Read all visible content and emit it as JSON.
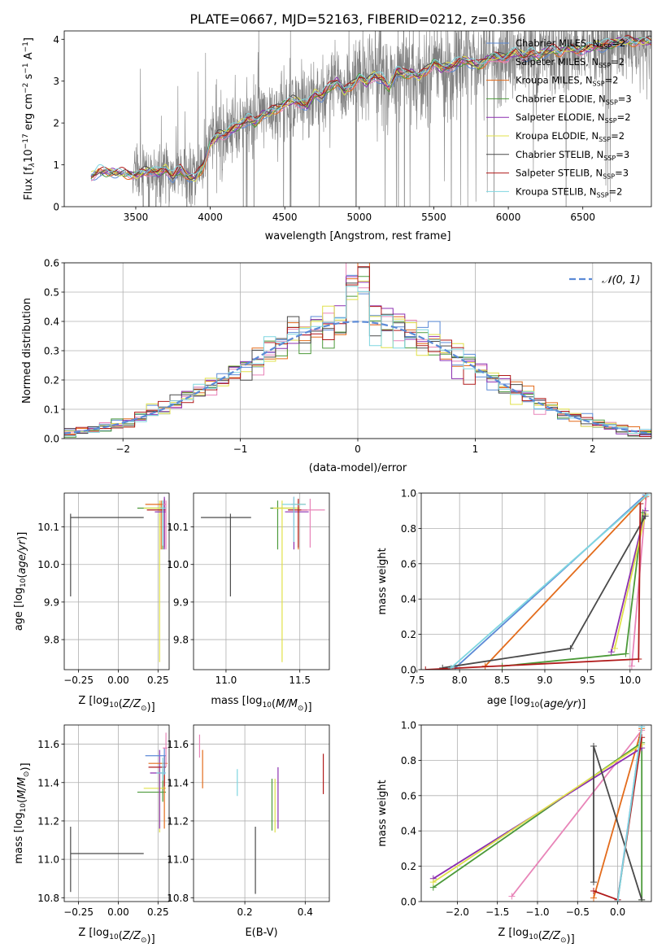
{
  "title": "PLATE=0667, MJD=52163, FIBERID=0212, z=0.356",
  "colors": {
    "chabrier_miles": "#5b8ad6",
    "salpeter_miles": "#e884b8",
    "kroupa_miles": "#e36c1c",
    "chabrier_elodie": "#4c9a3a",
    "salpeter_elodie": "#8c2fb0",
    "kroupa_elodie": "#e0e04a",
    "chabrier_stelib": "#4a4a4a",
    "salpeter_stelib": "#b01a1a",
    "kroupa_stelib": "#7fd6e0",
    "data": "#808080",
    "gaussian": "#5b8ad6"
  },
  "chart_data": [
    {
      "id": "spectrum",
      "type": "line",
      "title": "PLATE=0667, MJD=52163, FIBERID=0212, z=0.356",
      "xlabel": "wavelength [Angstrom, rest frame]",
      "ylabel": "Flux [f$_\\lambda$10$^{-17}$ erg cm$^{-2}$ s$^{-1}$ A$^{-1}$]",
      "ylabel_parts": [
        "Flux [f",
        "λ",
        "10",
        "−17",
        " erg cm",
        "−2",
        " s",
        "−1",
        " A",
        "−1",
        "]"
      ],
      "xlim": [
        3020,
        6960
      ],
      "ylim": [
        0,
        4.2
      ],
      "xticks": [
        "3500",
        "4000",
        "4500",
        "5000",
        "5500",
        "6000",
        "6500"
      ],
      "yticks": [
        "0",
        "1",
        "2",
        "3",
        "4"
      ],
      "legend_position": "upper-right",
      "legend": [
        {
          "name": "Chabrier MILES",
          "nssp": "2",
          "color_key": "chabrier_miles"
        },
        {
          "name": "Salpeter MILES",
          "nssp": "2",
          "color_key": "salpeter_miles"
        },
        {
          "name": "Kroupa MILES",
          "nssp": "2",
          "color_key": "kroupa_miles"
        },
        {
          "name": "Chabrier ELODIE",
          "nssp": "3",
          "color_key": "chabrier_elodie"
        },
        {
          "name": "Salpeter ELODIE",
          "nssp": "2",
          "color_key": "salpeter_elodie"
        },
        {
          "name": "Kroupa ELODIE",
          "nssp": "2",
          "color_key": "kroupa_elodie"
        },
        {
          "name": "Chabrier STELIB",
          "nssp": "3",
          "color_key": "chabrier_stelib"
        },
        {
          "name": "Salpeter STELIB",
          "nssp": "3",
          "color_key": "salpeter_stelib"
        },
        {
          "name": "Kroupa STELIB",
          "nssp": "2",
          "color_key": "kroupa_stelib"
        }
      ],
      "model_profile": {
        "x": [
          3200,
          3250,
          3300,
          3350,
          3400,
          3450,
          3500,
          3550,
          3600,
          3650,
          3700,
          3750,
          3800,
          3850,
          3900,
          3950,
          4000,
          4050,
          4100,
          4150,
          4200,
          4250,
          4300,
          4350,
          4400,
          4450,
          4500,
          4550,
          4600,
          4650,
          4700,
          4750,
          4800,
          4850,
          4900,
          4950,
          5000,
          5050,
          5100,
          5150,
          5200,
          5250,
          5300,
          5350,
          5400,
          5450,
          5500,
          5550,
          5600,
          5650,
          5700,
          5750,
          5800,
          5850,
          5900,
          5950,
          6000,
          6050,
          6100,
          6150,
          6200,
          6250,
          6300,
          6350,
          6400,
          6450,
          6500,
          6550,
          6600,
          6650,
          6700,
          6750
        ],
        "y": [
          0.72,
          0.85,
          0.83,
          0.82,
          0.8,
          0.78,
          0.74,
          0.82,
          0.88,
          0.8,
          0.9,
          0.72,
          0.9,
          0.72,
          0.68,
          0.95,
          1.5,
          1.7,
          1.75,
          1.85,
          1.95,
          2.1,
          2.0,
          2.2,
          2.25,
          2.35,
          2.45,
          2.55,
          2.5,
          2.4,
          2.7,
          2.65,
          2.85,
          3.0,
          2.75,
          2.9,
          3.1,
          2.95,
          3.15,
          3.05,
          2.85,
          3.25,
          3.15,
          3.2,
          3.1,
          3.25,
          3.45,
          3.3,
          3.35,
          3.4,
          3.5,
          3.45,
          3.35,
          3.5,
          3.6,
          3.55,
          3.6,
          3.7,
          3.6,
          3.65,
          3.6,
          3.7,
          3.75,
          3.7,
          3.8,
          3.75,
          3.75,
          3.8,
          3.85,
          3.85,
          3.9,
          3.95
        ]
      }
    },
    {
      "id": "residuals",
      "type": "step",
      "xlabel": "(data-model)/error",
      "ylabel": "Normed distribution",
      "xlim": [
        -2.5,
        2.5
      ],
      "ylim": [
        0,
        0.6
      ],
      "xticks": [
        "−2",
        "−1",
        "0",
        "1",
        "2"
      ],
      "yticks": [
        "0.0",
        "0.1",
        "0.2",
        "0.3",
        "0.4",
        "0.5",
        "0.6"
      ],
      "legend": [
        {
          "name": "𝒩(0, 1)",
          "style": "dashed",
          "color_key": "gaussian"
        }
      ],
      "legend_position": "upper-right",
      "bin_width": 0.1
    },
    {
      "id": "age_vs_Z",
      "type": "errorbar",
      "xlabel": "Z [log10(Z/Z⊙)]",
      "ylabel": "age  [log10(age/yr)]",
      "xlim": [
        -0.34,
        0.32
      ],
      "ylim": [
        9.72,
        10.19
      ],
      "xticks": [
        "−0.25",
        "0.00",
        "0.25"
      ],
      "yticks": [
        "9.8",
        "9.9",
        "10.0",
        "10.1"
      ],
      "points": [
        {
          "color_key": "chabrier_stelib",
          "x": -0.3,
          "xerr": [
            0,
            0.46
          ],
          "y": 10.125,
          "yerr": [
            0.21,
            0.01
          ]
        },
        {
          "color_key": "chabrier_elodie",
          "x": 0.28,
          "xerr": [
            0.16,
            0.02
          ],
          "y": 10.15,
          "yerr": [
            0.11,
            0.02
          ]
        },
        {
          "color_key": "kroupa_elodie",
          "x": 0.26,
          "xerr": [
            0.1,
            0.04
          ],
          "y": 10.15,
          "yerr": [
            0.41,
            0.02
          ]
        },
        {
          "color_key": "kroupa_miles",
          "x": 0.27,
          "xerr": [
            0.1,
            0.03
          ],
          "y": 10.16,
          "yerr": [
            0.12,
            0.01
          ]
        },
        {
          "color_key": "salpeter_stelib",
          "x": 0.29,
          "xerr": [
            0.11,
            0.01
          ],
          "y": 10.145,
          "yerr": [
            0.1,
            0.03
          ]
        },
        {
          "color_key": "salpeter_elodie",
          "x": 0.29,
          "xerr": [
            0.06,
            0.01
          ],
          "y": 10.14,
          "yerr": [
            0.1,
            0.04
          ]
        },
        {
          "color_key": "salpeter_miles",
          "x": 0.3,
          "xerr": [
            0.02,
            0.0
          ],
          "y": 10.16,
          "yerr": [
            0.12,
            0.01
          ]
        },
        {
          "color_key": "kroupa_stelib",
          "x": 0.28,
          "xerr": [
            0.02,
            0.02
          ],
          "y": 10.15,
          "yerr": [
            0.1,
            0.02
          ]
        }
      ]
    },
    {
      "id": "age_vs_mass",
      "type": "errorbar",
      "xlabel": "mass [log10(M/M⊙)]",
      "ylabel": "",
      "xlim": [
        10.78,
        11.7
      ],
      "ylim": [
        9.72,
        10.19
      ],
      "xticks": [
        "11.0",
        "11.5"
      ],
      "yticks": [
        "9.8",
        "9.9",
        "10.0",
        "10.1"
      ],
      "points": [
        {
          "color_key": "chabrier_stelib",
          "x": 11.03,
          "xerr": [
            0.2,
            0.14
          ],
          "y": 10.125,
          "yerr": [
            0.21,
            0.01
          ]
        },
        {
          "color_key": "chabrier_elodie",
          "x": 11.35,
          "xerr": [
            0.05,
            0.12
          ],
          "y": 10.15,
          "yerr": [
            0.11,
            0.02
          ]
        },
        {
          "color_key": "kroupa_elodie",
          "x": 11.38,
          "xerr": [
            0.06,
            0.12
          ],
          "y": 10.15,
          "yerr": [
            0.41,
            0.02
          ]
        },
        {
          "color_key": "salpeter_elodie",
          "x": 11.46,
          "xerr": [
            0.06,
            0.1
          ],
          "y": 10.14,
          "yerr": [
            0.1,
            0.04
          ]
        },
        {
          "color_key": "kroupa_miles",
          "x": 11.49,
          "xerr": [
            0.05,
            0.05
          ],
          "y": 10.16,
          "yerr": [
            0.12,
            0.01
          ]
        },
        {
          "color_key": "salpeter_stelib",
          "x": 11.49,
          "xerr": [
            0.07,
            0.06
          ],
          "y": 10.145,
          "yerr": [
            0.1,
            0.03
          ]
        },
        {
          "color_key": "salpeter_miles",
          "x": 11.57,
          "xerr": [
            0.06,
            0.1
          ],
          "y": 10.145,
          "yerr": [
            0.1,
            0.03
          ]
        },
        {
          "color_key": "kroupa_stelib",
          "x": 11.46,
          "xerr": [
            0.08,
            0.08
          ],
          "y": 10.16,
          "yerr": [
            0.1,
            0.02
          ]
        }
      ]
    },
    {
      "id": "massweight_vs_age",
      "type": "line",
      "xlabel": "age  [log10(age/yr)]",
      "ylabel": "mass weight",
      "xlim": [
        7.55,
        10.25
      ],
      "ylim": [
        0,
        1
      ],
      "xticks": [
        "7.5",
        "8.0",
        "8.5",
        "9.0",
        "9.5",
        "10.0"
      ],
      "yticks": [
        "0.0",
        "0.2",
        "0.4",
        "0.6",
        "0.8",
        "1.0"
      ],
      "series": [
        {
          "color_key": "chabrier_miles",
          "x": [
            7.95,
            10.18
          ],
          "y": [
            0.01,
            0.99
          ]
        },
        {
          "color_key": "salpeter_miles",
          "x": [
            10.02,
            10.19
          ],
          "y": [
            0.02,
            0.98
          ]
        },
        {
          "color_key": "kroupa_miles",
          "x": [
            8.3,
            10.18
          ],
          "y": [
            0.02,
            0.98
          ]
        },
        {
          "color_key": "chabrier_elodie",
          "x": [
            8.5,
            9.95,
            10.15
          ],
          "y": [
            0.02,
            0.09,
            0.89
          ]
        },
        {
          "color_key": "salpeter_elodie",
          "x": [
            9.78,
            10.18
          ],
          "y": [
            0.1,
            0.9
          ]
        },
        {
          "color_key": "kroupa_elodie",
          "x": [
            9.82,
            10.18
          ],
          "y": [
            0.12,
            0.88
          ]
        },
        {
          "color_key": "chabrier_stelib",
          "x": [
            7.8,
            9.3,
            10.18
          ],
          "y": [
            0.01,
            0.12,
            0.87
          ]
        },
        {
          "color_key": "salpeter_stelib",
          "x": [
            7.6,
            10.1,
            10.12
          ],
          "y": [
            0.0,
            0.06,
            0.94
          ]
        },
        {
          "color_key": "kroupa_stelib",
          "x": [
            7.9,
            10.2
          ],
          "y": [
            0.01,
            0.99
          ]
        }
      ]
    },
    {
      "id": "mass_vs_Z",
      "type": "errorbar",
      "xlabel": "Z [log10(Z/Z⊙)]",
      "ylabel": "mass [log10(M/M⊙)]",
      "xlim": [
        -0.34,
        0.32
      ],
      "ylim": [
        10.78,
        11.7
      ],
      "xticks": [
        "−0.25",
        "0.00",
        "0.25"
      ],
      "yticks": [
        "10.8",
        "11.0",
        "11.2",
        "11.4",
        "11.6"
      ],
      "points": [
        {
          "color_key": "chabrier_stelib",
          "x": -0.3,
          "xerr": [
            0,
            0.46
          ],
          "y": 11.03,
          "yerr": [
            0.2,
            0.14
          ]
        },
        {
          "color_key": "chabrier_elodie",
          "x": 0.28,
          "xerr": [
            0.16,
            0.02
          ],
          "y": 11.35,
          "yerr": [
            0.05,
            0.12
          ]
        },
        {
          "color_key": "kroupa_elodie",
          "x": 0.26,
          "xerr": [
            0.1,
            0.04
          ],
          "y": 11.37,
          "yerr": [
            0.23,
            0.1
          ]
        },
        {
          "color_key": "salpeter_elodie",
          "x": 0.26,
          "xerr": [
            0.06,
            0.03
          ],
          "y": 11.45,
          "yerr": [
            0.29,
            0.12
          ]
        },
        {
          "color_key": "kroupa_miles",
          "x": 0.29,
          "xerr": [
            0.1,
            0.02
          ],
          "y": 11.5,
          "yerr": [
            0.34,
            0.04
          ]
        },
        {
          "color_key": "salpeter_stelib",
          "x": 0.29,
          "xerr": [
            0.1,
            0.01
          ],
          "y": 11.48,
          "yerr": [
            0.1,
            0.06
          ]
        },
        {
          "color_key": "chabrier_miles",
          "x": 0.29,
          "xerr": [
            0.12,
            0.01
          ],
          "y": 11.54,
          "yerr": [
            0.1,
            0.04
          ]
        },
        {
          "color_key": "salpeter_miles",
          "x": 0.3,
          "xerr": [
            0.02,
            0.01
          ],
          "y": 11.58,
          "yerr": [
            0.1,
            0.08
          ]
        },
        {
          "color_key": "kroupa_stelib",
          "x": 0.28,
          "xerr": [
            0.04,
            0.02
          ],
          "y": 11.45,
          "yerr": [
            0.04,
            0.08
          ]
        }
      ]
    },
    {
      "id": "mass_vs_ebv",
      "type": "errorbar",
      "xlabel": "E(B-V)",
      "ylabel": "",
      "xlim": [
        0.03,
        0.48
      ],
      "ylim": [
        10.78,
        11.7
      ],
      "xticks": [
        "0.2",
        "0.4"
      ],
      "yticks": [
        "10.8",
        "11.0",
        "11.2",
        "11.4",
        "11.6"
      ],
      "points": [
        {
          "color_key": "salpeter_miles",
          "x": 0.05,
          "y": 11.55,
          "yerr": [
            0.02,
            0.1
          ]
        },
        {
          "color_key": "kroupa_miles",
          "x": 0.06,
          "y": 11.52,
          "yerr": [
            0.15,
            0.05
          ]
        },
        {
          "color_key": "kroupa_stelib",
          "x": 0.175,
          "y": 11.4,
          "yerr": [
            0.07,
            0.07
          ]
        },
        {
          "color_key": "chabrier_stelib",
          "x": 0.235,
          "y": 11.03,
          "yerr": [
            0.21,
            0.14
          ]
        },
        {
          "color_key": "chabrier_elodie",
          "x": 0.29,
          "y": 11.35,
          "yerr": [
            0.2,
            0.07
          ]
        },
        {
          "color_key": "kroupa_elodie",
          "x": 0.3,
          "y": 11.37,
          "yerr": [
            0.23,
            0.05
          ]
        },
        {
          "color_key": "salpeter_elodie",
          "x": 0.31,
          "y": 11.4,
          "yerr": [
            0.24,
            0.08
          ]
        },
        {
          "color_key": "salpeter_stelib",
          "x": 0.46,
          "y": 11.44,
          "yerr": [
            0.1,
            0.11
          ]
        }
      ]
    },
    {
      "id": "massweight_vs_Z",
      "type": "line",
      "xlabel": "Z [log10(Z/Z⊙)]",
      "ylabel": "mass weight",
      "xlim": [
        -2.45,
        0.42
      ],
      "ylim": [
        0,
        1
      ],
      "xticks": [
        "−2.0",
        "−1.5",
        "−1.0",
        "−0.5",
        "0.0"
      ],
      "yticks": [
        "0.0",
        "0.2",
        "0.4",
        "0.6",
        "0.8",
        "1.0"
      ],
      "series": [
        {
          "color_key": "chabrier_miles",
          "x": [
            0.0,
            0.3
          ],
          "y": [
            0.01,
            0.99
          ]
        },
        {
          "color_key": "salpeter_miles",
          "x": [
            -1.32,
            0.3
          ],
          "y": [
            0.03,
            0.97
          ]
        },
        {
          "color_key": "kroupa_miles",
          "x": [
            -0.3,
            0.3
          ],
          "y": [
            0.02,
            0.98
          ]
        },
        {
          "color_key": "chabrier_elodie",
          "x": [
            -2.3,
            0.3,
            0.3
          ],
          "y": [
            0.08,
            0.9,
            0.01
          ]
        },
        {
          "color_key": "salpeter_elodie",
          "x": [
            -2.3,
            0.3
          ],
          "y": [
            0.13,
            0.87
          ]
        },
        {
          "color_key": "kroupa_elodie",
          "x": [
            -2.3,
            0.3
          ],
          "y": [
            0.11,
            0.89
          ]
        },
        {
          "color_key": "chabrier_stelib",
          "x": [
            -0.3,
            -0.3,
            0.3
          ],
          "y": [
            0.11,
            0.88,
            0.01
          ]
        },
        {
          "color_key": "salpeter_stelib",
          "x": [
            -0.3,
            0.0,
            0.3
          ],
          "y": [
            0.06,
            0.01,
            0.93
          ]
        },
        {
          "color_key": "kroupa_stelib",
          "x": [
            0.0,
            0.3
          ],
          "y": [
            0.0,
            0.99
          ]
        }
      ]
    }
  ]
}
